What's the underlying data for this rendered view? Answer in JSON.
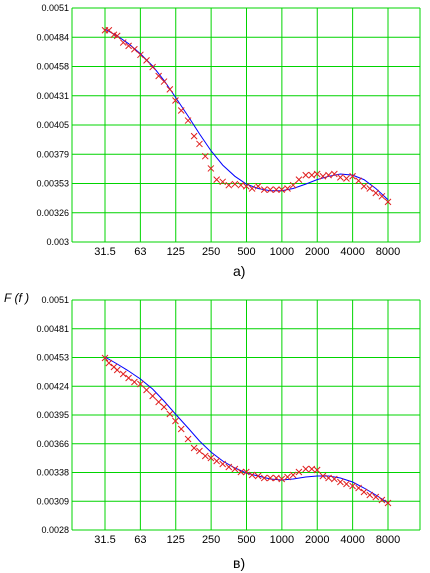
{
  "chart_data": [
    {
      "type": "line",
      "caption": "а)",
      "ylabel": "",
      "x_ticks": [
        "31.5",
        "63",
        "125",
        "250",
        "500",
        "1000",
        "2000",
        "4000",
        "8000"
      ],
      "y_ticks": [
        "0.003",
        "0.00326",
        "0.00353",
        "0.00379",
        "0.00405",
        "0.00431",
        "0.00458",
        "0.00484",
        "0.0051"
      ],
      "ylim": [
        0.003,
        0.0051
      ],
      "x_scale": "log",
      "series": [
        {
          "kind": "fit-curve",
          "color": "#0000ff",
          "x": [
            31.5,
            40,
            50,
            63,
            80,
            100,
            125,
            160,
            200,
            250,
            315,
            400,
            500,
            630,
            800,
            1000,
            1250,
            1600,
            2000,
            2500,
            3150,
            4000,
            5000,
            6300,
            8000
          ],
          "y": [
            0.00491,
            0.00485,
            0.00478,
            0.00469,
            0.00458,
            0.00445,
            0.0043,
            0.00413,
            0.00397,
            0.00382,
            0.00369,
            0.00359,
            0.00352,
            0.00348,
            0.00346,
            0.00346,
            0.00348,
            0.00352,
            0.00356,
            0.00359,
            0.00361,
            0.0036,
            0.00356,
            0.00348,
            0.00338
          ]
        },
        {
          "kind": "measured",
          "color": "#e02020",
          "x": [
            31.5,
            34,
            37.5,
            40,
            45,
            50,
            56,
            63,
            71,
            80,
            90,
            100,
            112,
            125,
            140,
            160,
            180,
            200,
            224,
            250,
            280,
            315,
            355,
            400,
            450,
            500,
            560,
            630,
            710,
            800,
            900,
            1000,
            1120,
            1250,
            1400,
            1600,
            1800,
            2000,
            2240,
            2500,
            2800,
            3150,
            3550,
            4000,
            4500,
            5000,
            5600,
            6300,
            7100,
            8000
          ],
          "y": [
            0.0049,
            0.0049,
            0.00486,
            0.00485,
            0.00479,
            0.00476,
            0.00473,
            0.00468,
            0.00463,
            0.00457,
            0.00449,
            0.00444,
            0.00437,
            0.00427,
            0.00418,
            0.00409,
            0.00395,
            0.00388,
            0.00377,
            0.00366,
            0.00356,
            0.00354,
            0.00351,
            0.00352,
            0.00351,
            0.0035,
            0.00348,
            0.0035,
            0.00347,
            0.00347,
            0.00347,
            0.00347,
            0.00348,
            0.00351,
            0.00356,
            0.0036,
            0.0036,
            0.00361,
            0.00359,
            0.0036,
            0.00361,
            0.00358,
            0.00357,
            0.00359,
            0.00355,
            0.0035,
            0.00348,
            0.00344,
            0.00341,
            0.00336
          ]
        }
      ]
    },
    {
      "type": "line",
      "caption": "в)",
      "ylabel": "F (f )",
      "x_ticks": [
        "31.5",
        "63",
        "125",
        "250",
        "500",
        "1000",
        "2000",
        "4000",
        "8000"
      ],
      "y_ticks": [
        "0.0028",
        "0.00309",
        "0.00338",
        "0.00366",
        "0.00395",
        "0.00424",
        "0.00453",
        "0.00481",
        "0.0051"
      ],
      "ylim": [
        0.0028,
        0.0051
      ],
      "x_scale": "log",
      "series": [
        {
          "kind": "fit-curve",
          "color": "#0000ff",
          "x": [
            31.5,
            40,
            50,
            63,
            80,
            100,
            125,
            160,
            200,
            250,
            315,
            400,
            500,
            630,
            800,
            1000,
            1250,
            1600,
            2000,
            2500,
            3150,
            4000,
            5000,
            6300,
            8000
          ],
          "y": [
            0.00453,
            0.00446,
            0.00439,
            0.00431,
            0.00421,
            0.00409,
            0.00396,
            0.00382,
            0.00369,
            0.00358,
            0.00349,
            0.00342,
            0.00337,
            0.00334,
            0.00331,
            0.0033,
            0.00331,
            0.00333,
            0.00334,
            0.00334,
            0.00332,
            0.00328,
            0.00322,
            0.00315,
            0.00307
          ]
        },
        {
          "kind": "measured",
          "color": "#e02020",
          "x": [
            31.5,
            34,
            37.5,
            40,
            45,
            50,
            56,
            63,
            71,
            80,
            90,
            100,
            112,
            125,
            140,
            160,
            180,
            200,
            224,
            250,
            280,
            315,
            355,
            400,
            450,
            500,
            560,
            630,
            710,
            800,
            900,
            1000,
            1120,
            1250,
            1400,
            1600,
            1800,
            2000,
            2240,
            2500,
            2800,
            3150,
            3550,
            4000,
            4500,
            5000,
            5600,
            6300,
            7100,
            8000
          ],
          "y": [
            0.00452,
            0.00447,
            0.00443,
            0.0044,
            0.00436,
            0.00432,
            0.00428,
            0.00426,
            0.0042,
            0.00414,
            0.00408,
            0.00403,
            0.00396,
            0.00389,
            0.00381,
            0.00371,
            0.00362,
            0.00359,
            0.00354,
            0.00352,
            0.00349,
            0.00346,
            0.00343,
            0.00341,
            0.00338,
            0.00338,
            0.00335,
            0.00334,
            0.00332,
            0.00332,
            0.00332,
            0.00331,
            0.00333,
            0.00335,
            0.00338,
            0.00341,
            0.00341,
            0.0034,
            0.00334,
            0.00332,
            0.00331,
            0.00328,
            0.00326,
            0.00324,
            0.00322,
            0.00318,
            0.00315,
            0.00313,
            0.0031,
            0.00307
          ]
        }
      ]
    }
  ]
}
